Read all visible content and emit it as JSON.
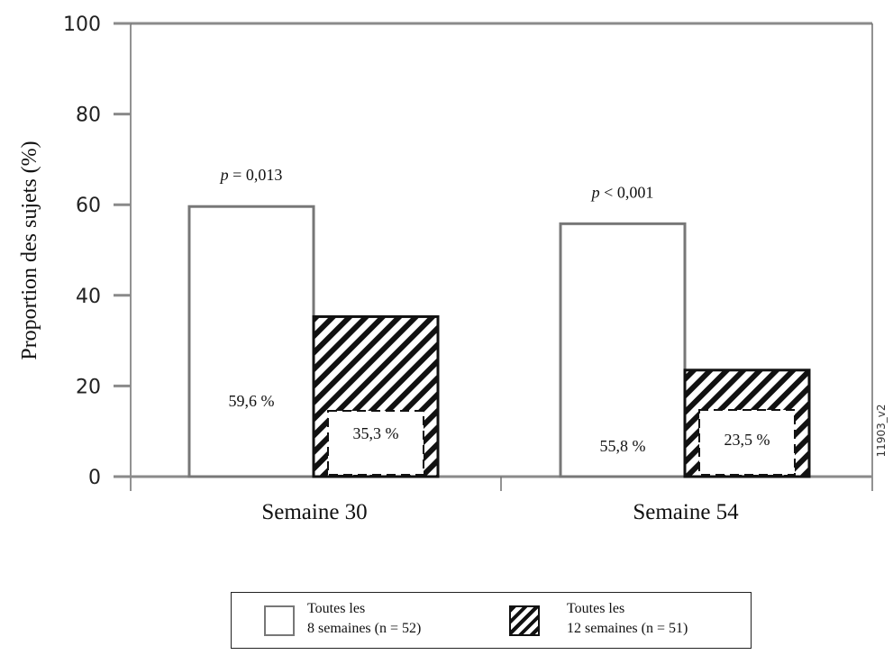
{
  "chart_data": {
    "type": "bar",
    "ylabel": "Proportion des sujets (%)",
    "ylim": [
      0,
      100
    ],
    "yticks": [
      "0",
      "20",
      "40",
      "60",
      "80",
      "100"
    ],
    "categories": [
      "Semaine 30",
      "Semaine 54"
    ],
    "series": [
      {
        "name": "Toutes les 8 semaines (n = 52)",
        "values": [
          59.6,
          55.8
        ],
        "value_labels": [
          "59,6 %",
          "55,8 %"
        ],
        "pattern": "plain"
      },
      {
        "name": "Toutes les 12 semaines (n = 51)",
        "values": [
          35.3,
          23.5
        ],
        "value_labels": [
          "35,3 %",
          "23,5 %"
        ],
        "pattern": "hatched"
      }
    ],
    "p_values": [
      {
        "symbol": "p",
        "relation": " = 0,013"
      },
      {
        "symbol": "p",
        "relation": " < 0,001"
      }
    ],
    "annotation": "11903_v2",
    "legend": {
      "placement": "bottom",
      "items": [
        {
          "line1": "Toutes les",
          "line2": "8 semaines (n = 52)"
        },
        {
          "line1": "Toutes les",
          "line2": "12 semaines (n = 51)"
        }
      ]
    },
    "colors": {
      "plain_border": "#777777",
      "hatch": "#111111",
      "axis": "#8a8a8a"
    }
  }
}
